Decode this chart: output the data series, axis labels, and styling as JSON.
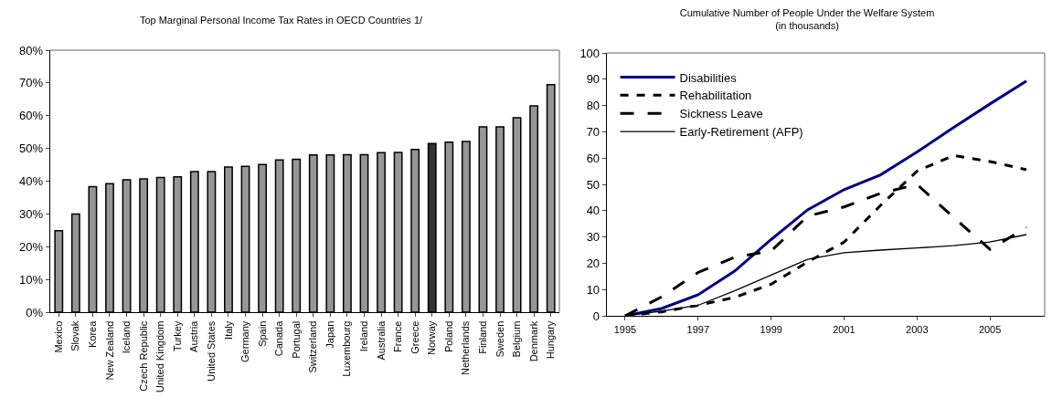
{
  "chart_data": [
    {
      "type": "bar",
      "title": "Top Marginal Personal Income Tax Rates in OECD Countries 1/",
      "categories": [
        "Mexico",
        "Slovak",
        "Korea",
        "New Zealand",
        "Iceland",
        "Czech Republic",
        "United Kingdom",
        "Turkey",
        "Austria",
        "United States",
        "Italy",
        "Germany",
        "Spain",
        "Canada",
        "Portugal",
        "Switzerland",
        "Japan",
        "Luxembourg",
        "Ireland",
        "Australia",
        "France",
        "Greece",
        "Norway",
        "Poland",
        "Netherlands",
        "Finland",
        "Sweden",
        "Belgium",
        "Denmark",
        "Hungary"
      ],
      "values": [
        24.9,
        30.0,
        38.3,
        39.2,
        40.4,
        40.7,
        41.1,
        41.3,
        42.9,
        42.9,
        44.3,
        44.5,
        45.1,
        46.5,
        46.7,
        48.0,
        48.0,
        48.1,
        48.1,
        48.7,
        48.8,
        49.7,
        51.5,
        51.9,
        52.1,
        56.6,
        56.6,
        59.4,
        63.0,
        69.5
      ],
      "colors": [
        "#969696",
        "#969696",
        "#969696",
        "#969696",
        "#969696",
        "#969696",
        "#969696",
        "#969696",
        "#969696",
        "#969696",
        "#969696",
        "#969696",
        "#969696",
        "#969696",
        "#969696",
        "#969696",
        "#969696",
        "#969696",
        "#969696",
        "#969696",
        "#969696",
        "#969696",
        "#333333",
        "#969696",
        "#969696",
        "#969696",
        "#969696",
        "#969696",
        "#969696",
        "#969696"
      ],
      "ylim": [
        0,
        80
      ],
      "yticks": [
        {
          "value": 0,
          "label": "0%"
        },
        {
          "value": 10,
          "label": "10%"
        },
        {
          "value": 20,
          "label": "20%"
        },
        {
          "value": 30,
          "label": "30%"
        },
        {
          "value": 40,
          "label": "40%"
        },
        {
          "value": 50,
          "label": "50%"
        },
        {
          "value": 60,
          "label": "60%"
        },
        {
          "value": 70,
          "label": "70%"
        },
        {
          "value": 80,
          "label": "80%"
        }
      ],
      "grid": false,
      "legend": false
    },
    {
      "type": "line",
      "title": "Cumulative Number of People Under the Welfare System",
      "subtitle": "(in thousands)",
      "categories": [
        "1995",
        null,
        "1997",
        null,
        "1999",
        null,
        "2001",
        null,
        "2003",
        null,
        "2005",
        null
      ],
      "series": [
        {
          "name": "Disabilities",
          "color": "#000080",
          "line_style": "solid",
          "values": [
            0,
            2.8,
            8,
            17,
            29,
            40.3,
            48,
            53.6,
            62.3,
            71.6,
            80.6,
            89.3
          ]
        },
        {
          "name": "Rehabilitation",
          "color": "#000000",
          "line_style": "dotted",
          "values": [
            0,
            1.5,
            4,
            7,
            12,
            20.5,
            28,
            42,
            55,
            61,
            58.7,
            55.6
          ]
        },
        {
          "name": "Sickness Leave",
          "color": "#000000",
          "line_style": "dashed",
          "values": [
            0,
            7.2,
            16.5,
            22.3,
            24.6,
            37.9,
            41.4,
            46.6,
            50,
            37.5,
            25.3,
            33.6
          ]
        },
        {
          "name": "Early-Retirement (AFP)",
          "color": "#000000",
          "line_style": "solid",
          "values": [
            0,
            1.8,
            4,
            9.5,
            15.5,
            21.5,
            24,
            25,
            25.8,
            26.7,
            28.1,
            30.9
          ]
        }
      ],
      "ylim": [
        0,
        100
      ],
      "yticks": [
        0,
        10,
        20,
        30,
        40,
        50,
        60,
        70,
        80,
        90,
        100
      ],
      "grid": false,
      "legend": "top left",
      "marker": "none"
    }
  ]
}
